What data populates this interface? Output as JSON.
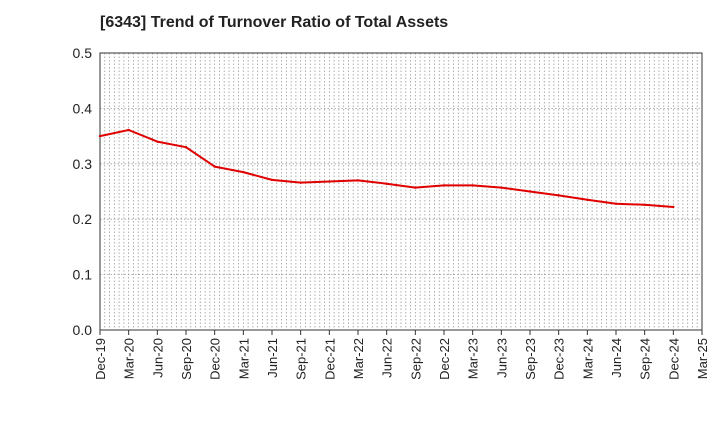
{
  "chart_data": {
    "type": "line",
    "title": "[6343]  Trend of Turnover Ratio of Total Assets",
    "xlabel": "",
    "ylabel": "",
    "ylim": [
      0,
      0.5
    ],
    "yticks": [
      "0.0",
      "0.1",
      "0.2",
      "0.3",
      "0.4",
      "0.5"
    ],
    "categories": [
      "Dec-19",
      "Mar-20",
      "Jun-20",
      "Sep-20",
      "Dec-20",
      "Mar-21",
      "Jun-21",
      "Sep-21",
      "Dec-21",
      "Mar-22",
      "Jun-22",
      "Sep-22",
      "Dec-22",
      "Mar-23",
      "Jun-23",
      "Sep-23",
      "Dec-23",
      "Mar-24",
      "Jun-24",
      "Sep-24",
      "Dec-24",
      "Mar-25"
    ],
    "series": [
      {
        "values": [
          0.35,
          0.361,
          0.34,
          0.33,
          0.295,
          0.285,
          0.271,
          0.266,
          0.268,
          0.27,
          0.264,
          0.257,
          0.261,
          0.261,
          0.257,
          0.25,
          0.243,
          0.235,
          0.228,
          0.226,
          0.222,
          null
        ],
        "color": "#e00000"
      }
    ],
    "grid": true,
    "legend": "none"
  }
}
